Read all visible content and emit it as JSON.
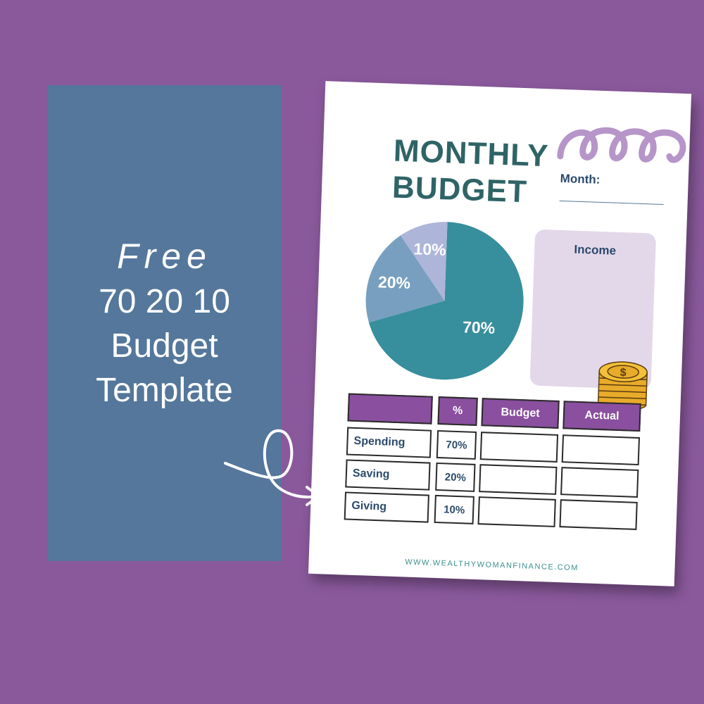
{
  "promo": {
    "line1": "Free",
    "line2": "70 20 10",
    "line3": "Budget",
    "line4": "Template"
  },
  "sheet": {
    "title_line1": "MONTHLY",
    "title_line2": "BUDGET",
    "month_label": "Month:",
    "income_label": "Income",
    "website": "WWW.WEALTHYWOMANFINANCE.COM"
  },
  "chart_data": {
    "type": "pie",
    "categories": [
      "70%",
      "20%",
      "10%"
    ],
    "values": [
      70,
      20,
      10
    ],
    "colors": [
      "#378e9c",
      "#789fbf",
      "#adb5d9"
    ]
  },
  "table": {
    "headers": [
      "",
      "%",
      "Budget",
      "Actual"
    ],
    "rows": [
      {
        "label": "Spending",
        "pct": "70%"
      },
      {
        "label": "Saving",
        "pct": "20%"
      },
      {
        "label": "Giving",
        "pct": "10%"
      }
    ]
  },
  "colors": {
    "background": "#8a599c",
    "panel": "#54779b",
    "title": "#2f6466",
    "header": "#8a4f9e",
    "income_box": "#e3d8ea"
  },
  "icons": [
    "curl-swirl-icon",
    "coin-stack-icon",
    "curved-arrow-icon"
  ]
}
